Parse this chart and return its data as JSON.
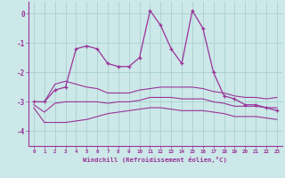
{
  "x": [
    0,
    1,
    2,
    3,
    4,
    5,
    6,
    7,
    8,
    9,
    10,
    11,
    12,
    13,
    14,
    15,
    16,
    17,
    18,
    19,
    20,
    21,
    22,
    23
  ],
  "line_main": [
    -3.0,
    -3.0,
    -2.6,
    -2.5,
    -1.2,
    -1.1,
    -1.2,
    -1.7,
    -1.8,
    -1.8,
    -1.5,
    0.1,
    -0.4,
    -1.2,
    -1.7,
    0.1,
    -0.5,
    -2.0,
    -2.8,
    -2.9,
    -3.1,
    -3.1,
    -3.2,
    -3.3
  ],
  "line_upper": [
    -3.0,
    -3.0,
    -2.4,
    -2.3,
    -2.4,
    -2.5,
    -2.55,
    -2.7,
    -2.7,
    -2.7,
    -2.6,
    -2.55,
    -2.5,
    -2.5,
    -2.5,
    -2.5,
    -2.55,
    -2.65,
    -2.7,
    -2.8,
    -2.85,
    -2.85,
    -2.9,
    -2.85
  ],
  "line_lower": [
    -3.2,
    -3.7,
    -3.7,
    -3.7,
    -3.65,
    -3.6,
    -3.5,
    -3.4,
    -3.35,
    -3.3,
    -3.25,
    -3.2,
    -3.2,
    -3.25,
    -3.3,
    -3.3,
    -3.3,
    -3.35,
    -3.4,
    -3.5,
    -3.5,
    -3.5,
    -3.55,
    -3.6
  ],
  "line_mid": [
    -3.1,
    -3.35,
    -3.05,
    -3.0,
    -3.0,
    -3.0,
    -3.0,
    -3.05,
    -3.0,
    -3.0,
    -2.95,
    -2.85,
    -2.85,
    -2.85,
    -2.9,
    -2.9,
    -2.9,
    -3.0,
    -3.05,
    -3.15,
    -3.15,
    -3.15,
    -3.2,
    -3.2
  ],
  "color": "#993399",
  "bg_color": "#cce8e8",
  "grid_color": "#aad0d0",
  "xlabel": "Windchill (Refroidissement éolien,°C)",
  "ylim": [
    -4.5,
    0.4
  ],
  "yticks": [
    0,
    -1,
    -2,
    -3,
    -4
  ],
  "xticks": [
    0,
    1,
    2,
    3,
    4,
    5,
    6,
    7,
    8,
    9,
    10,
    11,
    12,
    13,
    14,
    15,
    16,
    17,
    18,
    19,
    20,
    21,
    22,
    23
  ]
}
